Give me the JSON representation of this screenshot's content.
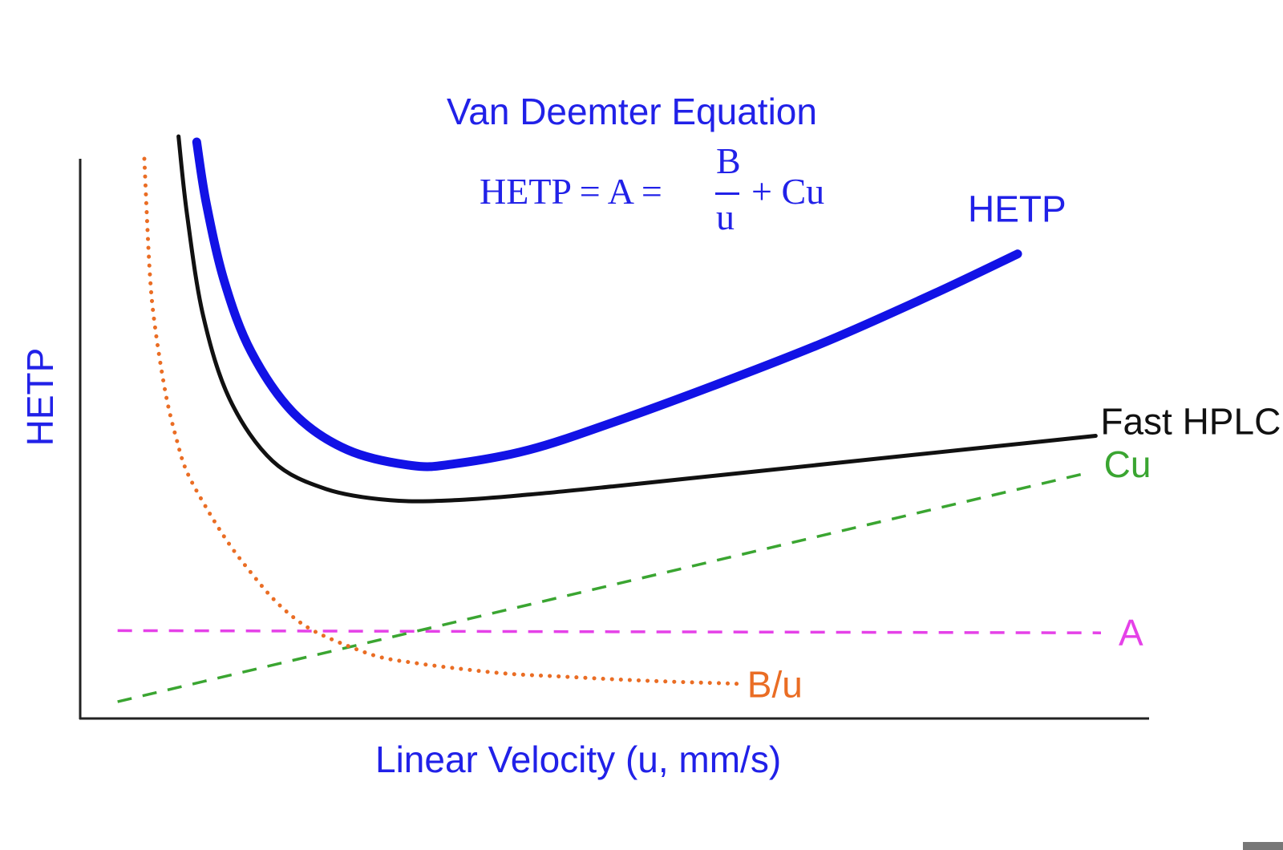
{
  "chart_data": {
    "type": "line",
    "title": "Van Deemter Equation",
    "equation": {
      "lhs": "HETP = A = ",
      "numerator": "B",
      "denominator": "u",
      "rhs": "+ Cu"
    },
    "xlabel": "Linear Velocity (u, mm/s)",
    "ylabel": "HETP",
    "xlim": [
      0,
      1
    ],
    "ylim": [
      0,
      1
    ],
    "ticks": "none",
    "grid": false,
    "series": [
      {
        "name": "HETP",
        "color": "#1212e6",
        "style": "solid-thick",
        "x": [
          0.109,
          0.118,
          0.135,
          0.16,
          0.2,
          0.25,
          0.31,
          0.35,
          0.42,
          0.5,
          0.6,
          0.7,
          0.8,
          0.877
        ],
        "y": [
          1.03,
          0.92,
          0.78,
          0.655,
          0.545,
          0.48,
          0.452,
          0.455,
          0.48,
          0.53,
          0.6,
          0.675,
          0.76,
          0.83
        ]
      },
      {
        "name": "Fast HPLC",
        "color": "#111111",
        "style": "solid",
        "x": [
          0.092,
          0.1,
          0.115,
          0.14,
          0.18,
          0.23,
          0.29,
          0.35,
          0.42,
          0.5,
          0.6,
          0.7,
          0.8,
          0.9,
          0.95
        ],
        "y": [
          1.04,
          0.9,
          0.72,
          0.57,
          0.46,
          0.41,
          0.39,
          0.39,
          0.4,
          0.415,
          0.435,
          0.455,
          0.475,
          0.495,
          0.505
        ]
      },
      {
        "name": "Cu",
        "color": "#3aa531",
        "style": "dashed",
        "x": [
          0.035,
          0.945
        ],
        "y": [
          0.03,
          0.44
        ]
      },
      {
        "name": "A",
        "color": "#e541e8",
        "style": "dashed",
        "x": [
          0.035,
          0.955
        ],
        "y": [
          0.157,
          0.153
        ]
      },
      {
        "name": "B/u",
        "color": "#ea6d24",
        "style": "dotted",
        "x": [
          0.06,
          0.065,
          0.07,
          0.08,
          0.09,
          0.1,
          0.12,
          0.14,
          0.16,
          0.18,
          0.2,
          0.22,
          0.25,
          0.28,
          0.31,
          0.35,
          0.4,
          0.45,
          0.5,
          0.55,
          0.6,
          0.615
        ],
        "y": [
          1.0,
          0.8,
          0.7,
          0.58,
          0.5,
          0.44,
          0.37,
          0.31,
          0.26,
          0.215,
          0.18,
          0.155,
          0.13,
          0.11,
          0.1,
          0.09,
          0.08,
          0.075,
          0.07,
          0.066,
          0.063,
          0.062
        ]
      }
    ],
    "series_labels": [
      {
        "text": "HETP",
        "color": "#2121e8",
        "series": "HETP"
      },
      {
        "text": "Fast HPLC",
        "color": "#111111",
        "series": "Fast HPLC"
      },
      {
        "text": "Cu",
        "color": "#3aa531",
        "series": "Cu"
      },
      {
        "text": "A",
        "color": "#e541e8",
        "series": "A"
      },
      {
        "text": "B/u",
        "color": "#ea6d24",
        "series": "B/u"
      }
    ],
    "axis_color": "#222222",
    "text_color": "#2121e8"
  }
}
